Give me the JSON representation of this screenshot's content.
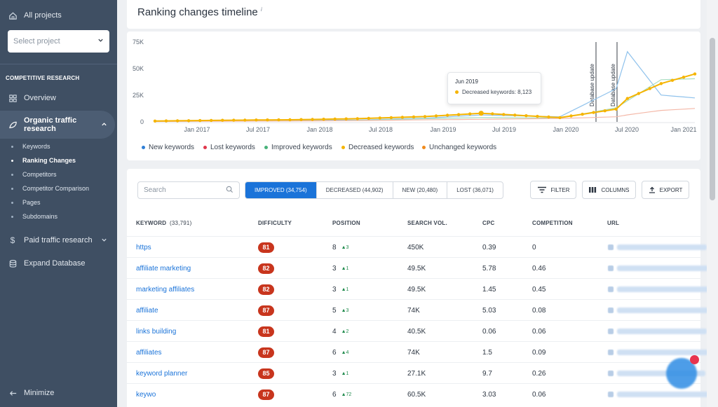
{
  "sidebar": {
    "all_projects": "All projects",
    "select_project": "Select project",
    "section_heading": "COMPETITIVE RESEARCH",
    "overview": "Overview",
    "organic": "Organic traffic research",
    "sub_items": [
      "Keywords",
      "Ranking Changes",
      "Competitors",
      "Competitor Comparison",
      "Pages",
      "Subdomains"
    ],
    "paid": "Paid traffic research",
    "expand_db": "Expand Database",
    "minimize": "Minimize"
  },
  "main": {
    "title": "Ranking changes timeline",
    "title_info": "i"
  },
  "chart_data": {
    "type": "line",
    "y_ticks": [
      "75K",
      "50K",
      "25K",
      "0"
    ],
    "ylim": [
      0,
      75000
    ],
    "x_ticks": [
      "Jan 2017",
      "Jul 2017",
      "Jan 2018",
      "Jul 2018",
      "Jan 2019",
      "Jul 2019",
      "Jan 2020",
      "Jul 2020",
      "Jan 2021"
    ],
    "annotations": [
      "Database update",
      "Database update"
    ],
    "legend_position": "bottom",
    "series": [
      {
        "name": "New keywords",
        "color": "#2f7fd6"
      },
      {
        "name": "Lost keywords",
        "color": "#e0374c"
      },
      {
        "name": "Improved keywords",
        "color": "#48b27a"
      },
      {
        "name": "Decreased keywords",
        "color": "#f5b400"
      },
      {
        "name": "Unchanged keywords",
        "color": "#f08a1c"
      }
    ],
    "x": [
      "Jan 2017",
      "Jul 2017",
      "Jan 2018",
      "Jul 2018",
      "Jan 2019",
      "Jun 2019",
      "Jan 2020",
      "Jun 2020",
      "Jul 2020",
      "Oct 2020",
      "Jan 2021"
    ],
    "decreased_values": [
      800,
      1500,
      2000,
      3000,
      5000,
      8123,
      4000,
      12000,
      22000,
      36000,
      45000
    ],
    "tooltip": {
      "date": "Jun 2019",
      "series": "Decreased keywords",
      "value": "8,123"
    }
  },
  "toolbar": {
    "search_placeholder": "Search",
    "tabs": [
      "IMPROVED (34,754)",
      "DECREASED (44,902)",
      "NEW (20,480)",
      "LOST (36,071)"
    ],
    "filter": "FILTER",
    "columns": "COLUMNS",
    "export": "EXPORT"
  },
  "table": {
    "headers": {
      "keyword": "KEYWORD",
      "keyword_count": "(33,791)",
      "difficulty": "DIFFICULTY",
      "position": "POSITION",
      "search_vol": "SEARCH VOL.",
      "cpc": "CPC",
      "competition": "COMPETITION",
      "url": "URL"
    },
    "rows": [
      {
        "keyword": "https",
        "difficulty": "81",
        "position": "8",
        "change": "▲3",
        "volume": "450K",
        "cpc": "0.39",
        "competition": "0"
      },
      {
        "keyword": "affiliate marketing",
        "difficulty": "82",
        "position": "3",
        "change": "▲1",
        "volume": "49.5K",
        "cpc": "5.78",
        "competition": "0.46"
      },
      {
        "keyword": "marketing affiliates",
        "difficulty": "82",
        "position": "3",
        "change": "▲1",
        "volume": "49.5K",
        "cpc": "1.45",
        "competition": "0.45"
      },
      {
        "keyword": "affiliate",
        "difficulty": "87",
        "position": "5",
        "change": "▲3",
        "volume": "74K",
        "cpc": "5.03",
        "competition": "0.08"
      },
      {
        "keyword": "links building",
        "difficulty": "81",
        "position": "4",
        "change": "▲2",
        "volume": "40.5K",
        "cpc": "0.06",
        "competition": "0.06"
      },
      {
        "keyword": "affiliates",
        "difficulty": "87",
        "position": "6",
        "change": "▲4",
        "volume": "74K",
        "cpc": "1.5",
        "competition": "0.09"
      },
      {
        "keyword": "keyword planner",
        "difficulty": "85",
        "position": "3",
        "change": "▲1",
        "volume": "27.1K",
        "cpc": "9.7",
        "competition": "0.26"
      },
      {
        "keyword": "keywo",
        "difficulty": "87",
        "position": "6",
        "change": "▲72",
        "volume": "60.5K",
        "cpc": "3.03",
        "competition": "0.06"
      }
    ]
  }
}
